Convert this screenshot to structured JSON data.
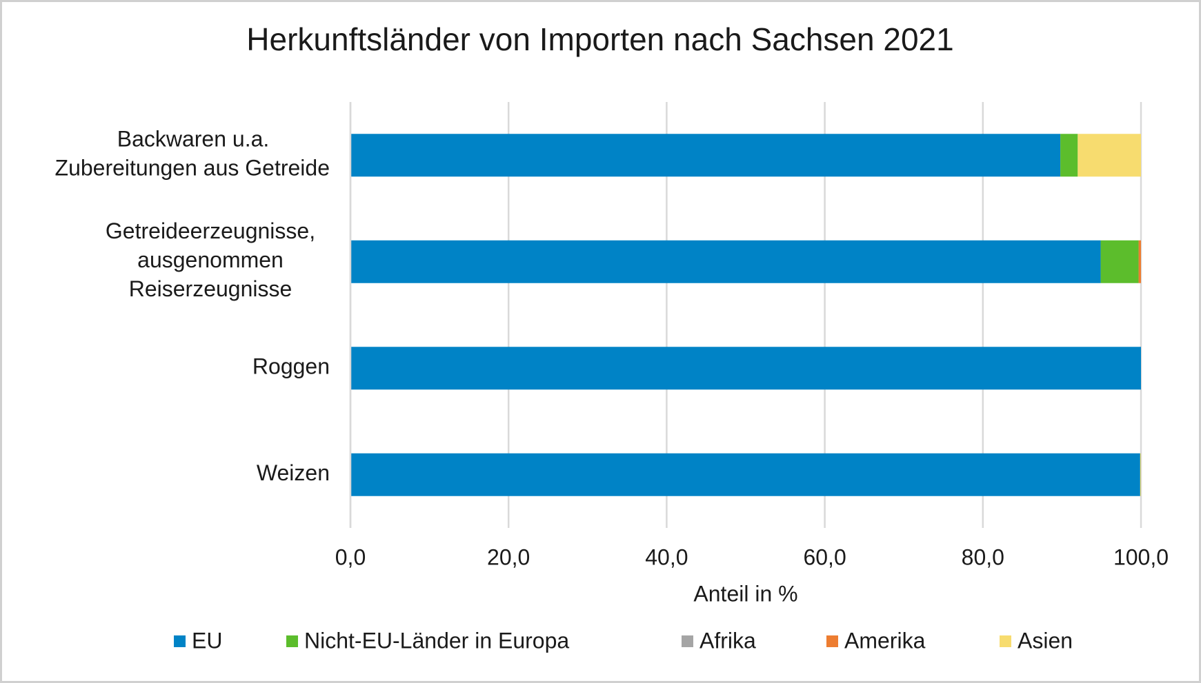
{
  "chart_data": {
    "type": "stacked_bar_horizontal",
    "title": "Herkunftsländer von Importen nach Sachsen 2021",
    "x_label": "Anteil in %",
    "categories": [
      "Backwaren u.a.\nZubereitungen aus Getreide",
      "Getreideerzeugnisse,\nausgenommen\nReiserzeugnisse",
      "Roggen",
      "Weizen"
    ],
    "series": [
      {
        "name": "EU",
        "color": "#0083c6",
        "values": [
          89.8,
          94.9,
          100,
          99.9
        ]
      },
      {
        "name": "Nicht-EU-Länder in Europa",
        "color": "#5cbd2c",
        "values": [
          2.2,
          4.8,
          0,
          0
        ]
      },
      {
        "name": "Afrika",
        "color": "#a5a5a5",
        "values": [
          0,
          0,
          0,
          0
        ]
      },
      {
        "name": "Amerika",
        "color": "#ed7d31",
        "values": [
          0,
          0.3,
          0,
          0
        ]
      },
      {
        "name": "Asien",
        "color": "#f7dc6f",
        "values": [
          8.0,
          0,
          0,
          0.1
        ]
      }
    ],
    "xlim": [
      0,
      100
    ],
    "xticks": [
      {
        "value": 0,
        "label": "0,0"
      },
      {
        "value": 20,
        "label": "20,0"
      },
      {
        "value": 40,
        "label": "40,0"
      },
      {
        "value": 60,
        "label": "60,0"
      },
      {
        "value": 80,
        "label": "80,0"
      },
      {
        "value": 100,
        "label": "100,0"
      }
    ],
    "grid": true,
    "legend": "bottom"
  }
}
